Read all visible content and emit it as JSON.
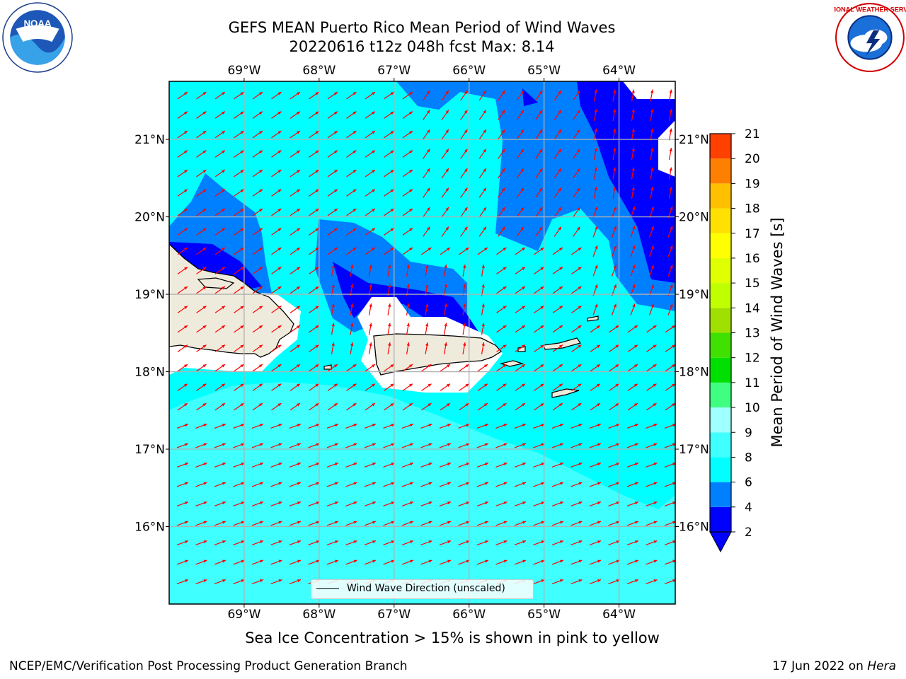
{
  "title": {
    "line1": "GEFS MEAN Puerto Rico Mean Period of Wind Waves",
    "line2": "20220616 t12z 048h fcst   Max: 8.14"
  },
  "logos": {
    "left": "noaa-logo-icon",
    "left_text": "NOAA",
    "right": "nws-logo-icon",
    "right_text": "NATIONAL WEATHER SERVICE"
  },
  "map": {
    "lon_labels": [
      "69°W",
      "68°W",
      "67°W",
      "66°W",
      "65°W",
      "64°W"
    ],
    "lat_labels": [
      "21°N",
      "20°N",
      "19°N",
      "18°N",
      "17°N",
      "16°N"
    ],
    "legend_label": "Wind Wave Direction (unscaled)",
    "arrow_color": "#ff0000",
    "land_color": "#efebdc"
  },
  "colorbar": {
    "title": "Mean Period of Wind Waves [s]",
    "ticks": [
      "2",
      "4",
      "6",
      "8",
      "9",
      "10",
      "11",
      "12",
      "13",
      "14",
      "15",
      "16",
      "17",
      "18",
      "19",
      "20",
      "21"
    ],
    "colors": [
      "#0000ff",
      "#0080ff",
      "#00ffff",
      "#40ffff",
      "#a0ffff",
      "#40ff80",
      "#00e000",
      "#40e000",
      "#a0e000",
      "#c0ff00",
      "#e0ff00",
      "#ffff00",
      "#ffe000",
      "#ffc000",
      "#ff8000",
      "#ff4000",
      "#ff0000"
    ]
  },
  "chart_data": {
    "type": "map",
    "title": "GEFS MEAN Puerto Rico Mean Period of Wind Waves",
    "subtitle": "20220616 t12z 048h fcst   Max: 8.14",
    "max_value": 8.14,
    "lon_range": [
      -70.0,
      -63.25
    ],
    "lat_range": [
      15.0,
      21.75
    ],
    "colorbar_levels": [
      2,
      4,
      6,
      8,
      9,
      10,
      11,
      12,
      13,
      14,
      15,
      16,
      17,
      18,
      19,
      20,
      21
    ],
    "ylabel": "Mean Period of Wind Waves [s]",
    "legend": "Wind Wave Direction (unscaled)"
  },
  "footer": {
    "note": "Sea Ice Concentration > 15% is shown in pink to yellow",
    "left": "NCEP/EMC/Verification Post Processing Product Generation Branch",
    "right_date": "17 Jun 2022 on ",
    "right_host": "Hera"
  }
}
